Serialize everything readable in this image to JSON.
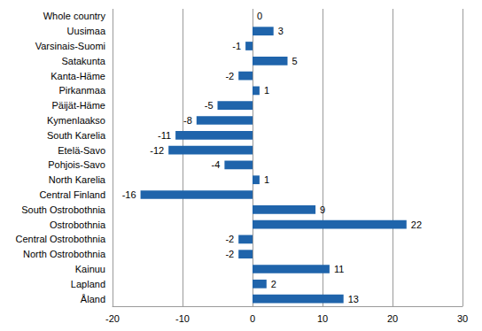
{
  "chart_data": {
    "type": "bar",
    "orientation": "horizontal",
    "categories": [
      "Whole country",
      "Uusimaa",
      "Varsinais-Suomi",
      "Satakunta",
      "Kanta-Häme",
      "Pirkanmaa",
      "Päijät-Häme",
      "Kymenlaakso",
      "South Karelia",
      "Etelä-Savo",
      "Pohjois-Savo",
      "North Karelia",
      "Central Finland",
      "South Ostrobothnia",
      "Ostrobothnia",
      "Central Ostrobothnia",
      "North Ostrobothnia",
      "Kainuu",
      "Lapland",
      "Åland"
    ],
    "values": [
      0,
      3,
      -1,
      5,
      -2,
      1,
      -5,
      -8,
      -11,
      -12,
      -4,
      1,
      -16,
      9,
      22,
      -2,
      -2,
      11,
      2,
      13
    ],
    "color": "#1f64ab",
    "xlim": [
      -20,
      30
    ],
    "xticks": [
      -20,
      -10,
      0,
      10,
      20,
      30
    ],
    "grid": true,
    "data_labels": true
  }
}
